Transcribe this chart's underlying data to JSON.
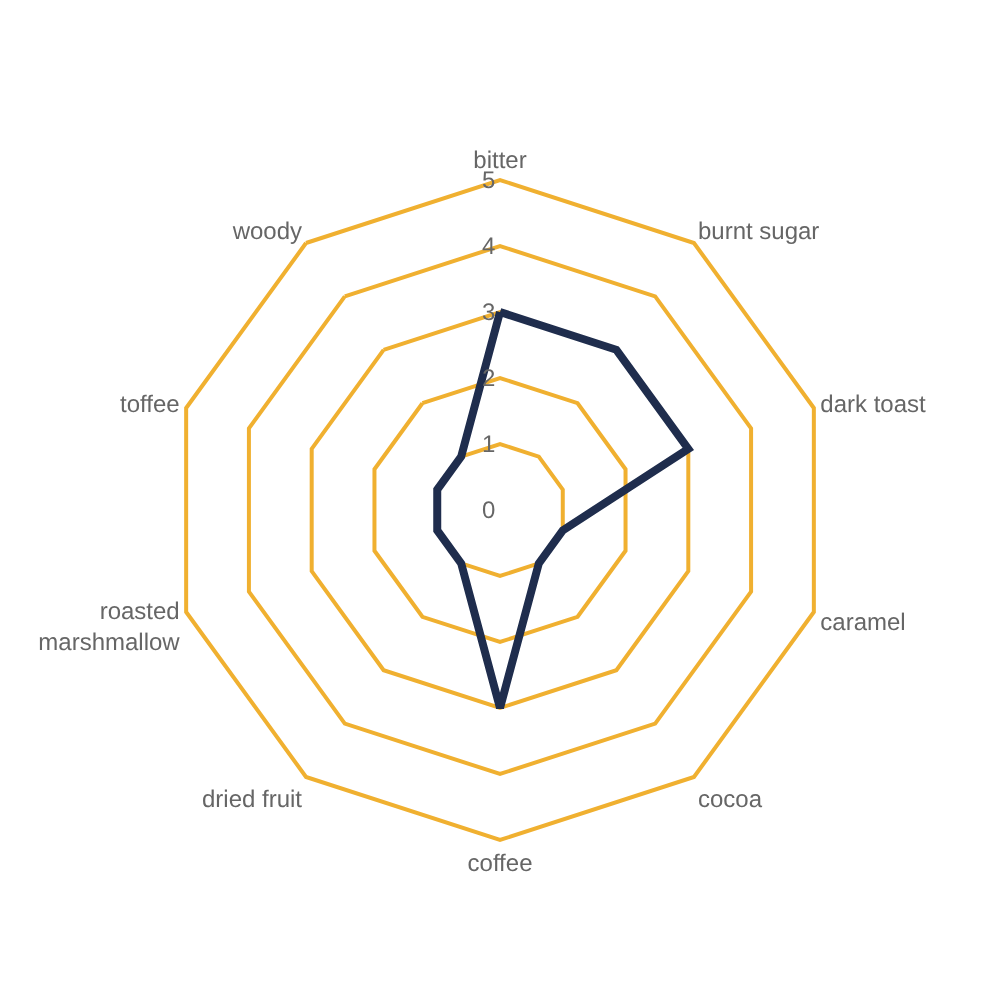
{
  "chart_data": {
    "type": "radar",
    "categories": [
      "bitter",
      "burnt sugar",
      "dark toast",
      "caramel",
      "cocoa",
      "coffee",
      "dried fruit",
      "roasted marshmallow",
      "toffee",
      "woody"
    ],
    "series": [
      {
        "color": "#1f2d4d",
        "values": [
          3,
          3,
          3,
          1,
          1,
          3,
          1,
          1,
          1,
          1
        ]
      }
    ],
    "ylim": [
      0,
      5
    ],
    "yticks": [
      0,
      1,
      2,
      3,
      4,
      5
    ],
    "grid": true,
    "marker": "none",
    "line_style": "solid"
  }
}
